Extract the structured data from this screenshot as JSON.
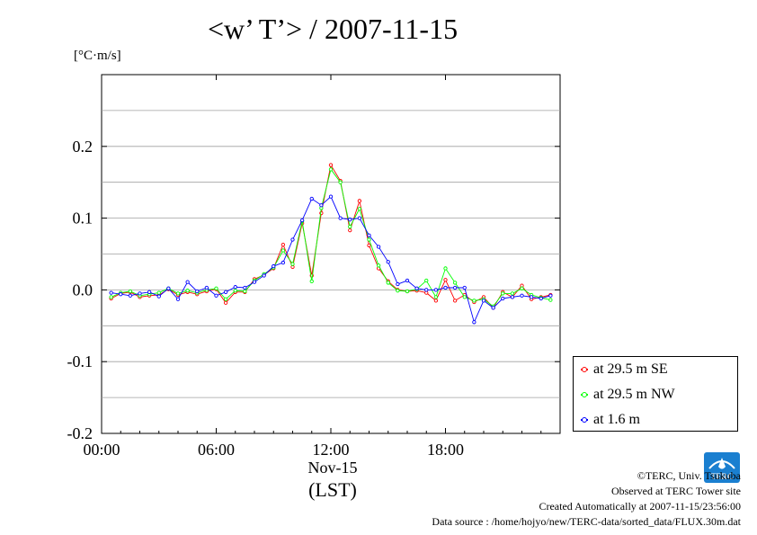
{
  "chart_data": {
    "type": "line",
    "title": "<w’ T’> / 2007-11-15",
    "ylabel": "[°C·m/s]",
    "xlabel": "Nov-15",
    "xlabel2": "(LST)",
    "ylim": [
      -0.2,
      0.3
    ],
    "yticks": [
      "0.2",
      "0.1",
      "0.0",
      "-0.1",
      "-0.2"
    ],
    "ytick_values": [
      0.2,
      0.1,
      0.0,
      -0.1,
      -0.2
    ],
    "xlim": [
      0,
      24
    ],
    "xticks": [
      "00:00",
      "06:00",
      "12:00",
      "18:00"
    ],
    "xtick_values": [
      0,
      6,
      12,
      18
    ],
    "grid": true,
    "legend_position": "bottom-right, outside plot",
    "x": [
      0.5,
      1.0,
      1.5,
      2.0,
      2.5,
      3.0,
      3.5,
      4.0,
      4.5,
      5.0,
      5.5,
      6.0,
      6.5,
      7.0,
      7.5,
      8.0,
      8.5,
      9.0,
      9.5,
      10.0,
      10.5,
      11.0,
      11.5,
      12.0,
      12.5,
      13.0,
      13.5,
      14.0,
      14.5,
      15.0,
      15.5,
      16.0,
      16.5,
      17.0,
      17.5,
      18.0,
      18.5,
      19.0,
      19.5,
      20.0,
      20.5,
      21.0,
      21.5,
      22.0,
      22.5,
      23.0,
      23.5
    ],
    "series": [
      {
        "name": "at 29.5 m SE",
        "color": "#ff0000",
        "values": [
          -0.012,
          -0.005,
          -0.003,
          -0.01,
          -0.008,
          -0.007,
          0.001,
          -0.007,
          -0.003,
          -0.006,
          -0.002,
          0.001,
          -0.018,
          -0.003,
          -0.003,
          0.015,
          0.021,
          0.03,
          0.063,
          0.032,
          0.093,
          0.02,
          0.107,
          0.174,
          0.152,
          0.083,
          0.124,
          0.062,
          0.03,
          0.012,
          0.0,
          -0.002,
          -0.001,
          -0.004,
          -0.015,
          0.014,
          -0.015,
          -0.007,
          -0.017,
          -0.01,
          -0.025,
          -0.003,
          -0.01,
          0.006,
          -0.013,
          -0.01,
          -0.007
        ]
      },
      {
        "name": "at 29.5 m NW",
        "color": "#00ff00",
        "values": [
          -0.01,
          -0.004,
          -0.002,
          -0.008,
          -0.006,
          -0.004,
          0.002,
          -0.005,
          -0.001,
          -0.004,
          0.0,
          0.002,
          -0.013,
          -0.001,
          -0.002,
          0.013,
          0.022,
          0.031,
          0.055,
          0.036,
          0.096,
          0.012,
          0.114,
          0.168,
          0.15,
          0.088,
          0.113,
          0.07,
          0.034,
          0.01,
          -0.001,
          -0.002,
          0.001,
          0.013,
          -0.01,
          0.03,
          0.01,
          -0.01,
          -0.015,
          -0.013,
          -0.023,
          -0.005,
          -0.005,
          0.002,
          -0.007,
          -0.011,
          -0.014
        ]
      },
      {
        "name": "at 1.6 m",
        "color": "#0000ff",
        "values": [
          -0.004,
          -0.006,
          -0.008,
          -0.005,
          -0.003,
          -0.009,
          0.002,
          -0.013,
          0.011,
          -0.002,
          0.003,
          -0.008,
          -0.003,
          0.004,
          0.003,
          0.011,
          0.02,
          0.033,
          0.038,
          0.07,
          0.097,
          0.127,
          0.118,
          0.13,
          0.1,
          0.098,
          0.1,
          0.076,
          0.06,
          0.039,
          0.008,
          0.013,
          0.002,
          0.0,
          0.0,
          0.003,
          0.003,
          0.003,
          -0.045,
          -0.015,
          -0.025,
          -0.012,
          -0.01,
          -0.008,
          -0.01,
          -0.012,
          -0.008
        ]
      }
    ]
  },
  "footer": {
    "copyright": "©TERC, Univ. Tsukuba",
    "observed": "Observed at TERC Tower site",
    "created": "Created Automatically at 2007-11-15/23:56:00",
    "source": "Data source : /home/hojyo/new/TERC-data/sorted_data/FLUX.30m.dat"
  },
  "logo": {
    "text": "TERC",
    "color": "#1a7fd0"
  }
}
